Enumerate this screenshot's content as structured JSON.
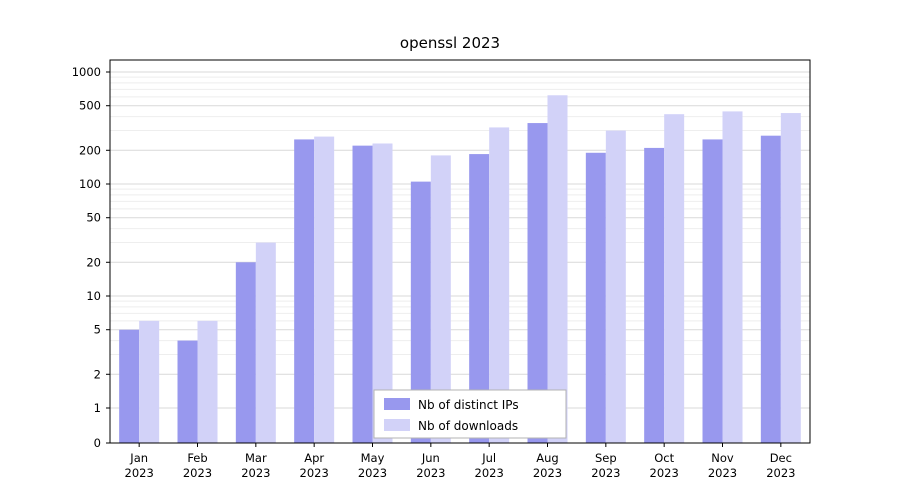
{
  "chart_data": {
    "type": "bar",
    "title": "openssl 2023",
    "categories": [
      "Jan",
      "Feb",
      "Mar",
      "Apr",
      "May",
      "Jun",
      "Jul",
      "Aug",
      "Sep",
      "Oct",
      "Nov",
      "Dec"
    ],
    "category_year": "2023",
    "series": [
      {
        "name": "Nb of distinct IPs",
        "color": "#9898ee",
        "values": [
          5,
          4,
          20,
          250,
          220,
          105,
          185,
          350,
          190,
          210,
          250,
          270
        ]
      },
      {
        "name": "Nb of downloads",
        "color": "#d2d2f8",
        "values": [
          6,
          6,
          30,
          265,
          230,
          180,
          320,
          620,
          300,
          420,
          445,
          430
        ]
      }
    ],
    "yticks": [
      0,
      1,
      2,
      5,
      10,
      20,
      50,
      100,
      200,
      500,
      1000
    ],
    "ylim": [
      0,
      1300
    ],
    "yscale": "symlog",
    "grid": true,
    "legend_position": "lower center"
  }
}
